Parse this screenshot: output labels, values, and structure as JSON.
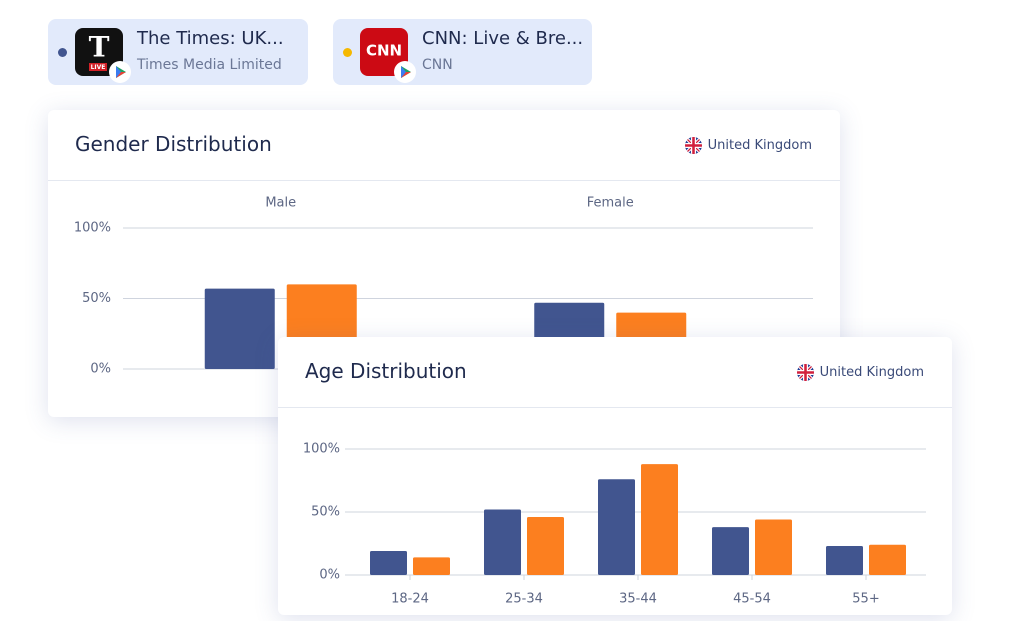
{
  "apps": [
    {
      "title": "The Times: UK...",
      "publisher": "Times Media Limited",
      "icon_letter": "T",
      "icon_badge": "LIVE",
      "color": "#41558f"
    },
    {
      "title": "CNN: Live & Bre...",
      "publisher": "CNN",
      "icon_letter": "CNN",
      "color": "#f5b800"
    }
  ],
  "chart_data": [
    {
      "type": "bar",
      "title": "Gender Distribution",
      "region": "United Kingdom",
      "categories": [
        "Male",
        "Female"
      ],
      "series": [
        {
          "color": "#41558f",
          "values": [
            57,
            47
          ]
        },
        {
          "color": "#fc7f1f",
          "values": [
            60,
            40
          ]
        }
      ],
      "ylim": [
        0,
        100
      ],
      "yticks": [
        {
          "value": 0,
          "label": "0%"
        },
        {
          "value": 50,
          "label": "50%"
        },
        {
          "value": 100,
          "label": "100%"
        }
      ],
      "grid": true,
      "category_labels": "top"
    },
    {
      "type": "bar",
      "title": "Age Distribution",
      "region": "United Kingdom",
      "categories": [
        "18-24",
        "25-34",
        "35-44",
        "45-54",
        "55+"
      ],
      "series": [
        {
          "color": "#41558f",
          "values": [
            19,
            52,
            76,
            38,
            23
          ]
        },
        {
          "color": "#fc7f1f",
          "values": [
            14,
            46,
            88,
            44,
            24
          ]
        }
      ],
      "ylim": [
        0,
        100
      ],
      "yticks": [
        {
          "value": 0,
          "label": "0%"
        },
        {
          "value": 50,
          "label": "50%"
        },
        {
          "value": 100,
          "label": "100%"
        }
      ],
      "grid": true,
      "category_labels": "bottom"
    }
  ]
}
